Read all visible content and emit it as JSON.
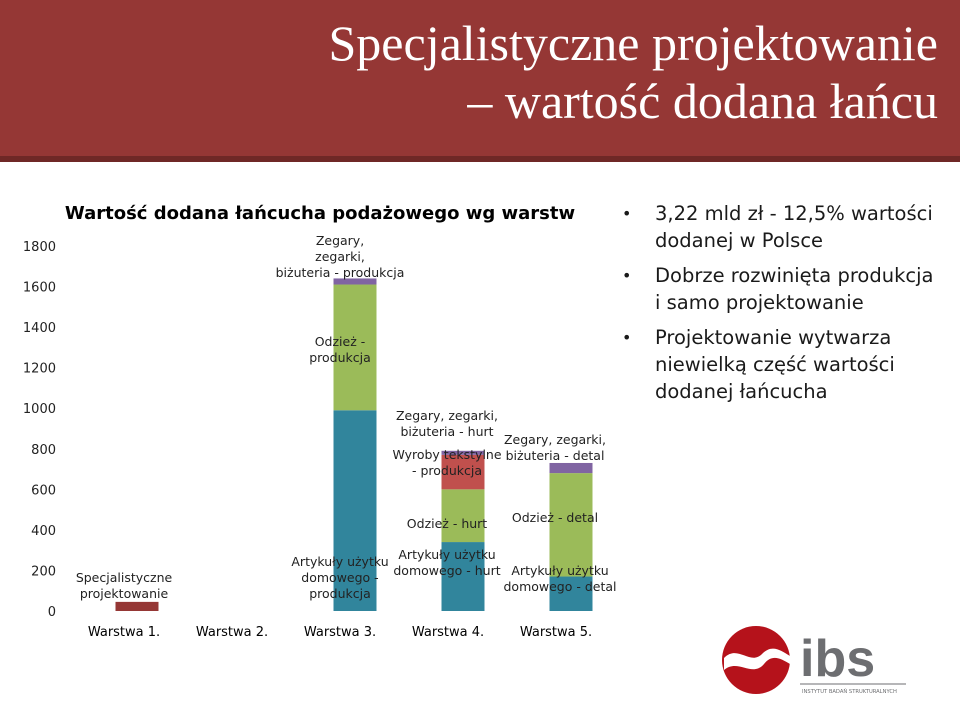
{
  "slide": {
    "title_line1": "Specjalistyczne projektowanie",
    "title_line2": "– wartość dodana łańcu"
  },
  "bullets": [
    "3,22 mld zł - 12,5% wartości dodanej w Polsce",
    "Dobrze rozwinięta produkcja i samo projektowanie",
    "Projektowanie wytwarza niewielką część wartości dodanej łańcucha"
  ],
  "chart_data": {
    "type": "bar",
    "stacked": true,
    "title": "Wartość dodana łańcucha podażowego wg warstw",
    "ylim": [
      0,
      1800
    ],
    "yticks": [
      0,
      200,
      400,
      600,
      800,
      1000,
      1200,
      1400,
      1600,
      1800
    ],
    "categories": [
      "Warstwa 1.",
      "Warstwa 2.",
      "Warstwa 3.",
      "Warstwa 4.",
      "Warstwa 5."
    ],
    "grid": false,
    "stacks": [
      {
        "category": "Warstwa 1.",
        "segments": [
          {
            "label": "Specjalistyczne projektowanie",
            "value": 45,
            "color": "#953735"
          }
        ]
      },
      {
        "category": "Warstwa 2.",
        "segments": []
      },
      {
        "category": "Warstwa 3.",
        "segments": [
          {
            "label": "Artykuły użytku domowego - produkcja",
            "value": 990,
            "color": "#31859c"
          },
          {
            "label": "Odzież - produkcja",
            "value": 620,
            "color": "#9bbb59"
          },
          {
            "label": "Zegary, zegarki, biżuteria - produkcja",
            "value": 30,
            "color": "#8064a2"
          }
        ]
      },
      {
        "category": "Warstwa 4.",
        "segments": [
          {
            "label": "Artykuły użytku domowego - hurt",
            "value": 340,
            "color": "#31859c"
          },
          {
            "label": "Odzież - hurt",
            "value": 260,
            "color": "#9bbb59"
          },
          {
            "label": "Wyroby tekstylne - produkcja",
            "value": 170,
            "color": "#c0504d"
          },
          {
            "label": "Zegary, zegarki, biżuteria - hurt",
            "value": 20,
            "color": "#8064a2"
          }
        ]
      },
      {
        "category": "Warstwa 5.",
        "segments": [
          {
            "label": "Artykuły użytku domowego - detal",
            "value": 170,
            "color": "#31859c"
          },
          {
            "label": "Odzież - detal",
            "value": 510,
            "color": "#9bbb59"
          },
          {
            "label": "Zegary, zegarki, biżuteria - detal",
            "value": 50,
            "color": "#8064a2"
          }
        ]
      }
    ]
  },
  "logo": {
    "text": "ibs",
    "subtitle": "INSTYTUT BADAŃ STRUKTURALNYCH",
    "colors": {
      "mark": "#b5121b",
      "text": "#6d6e71"
    }
  }
}
